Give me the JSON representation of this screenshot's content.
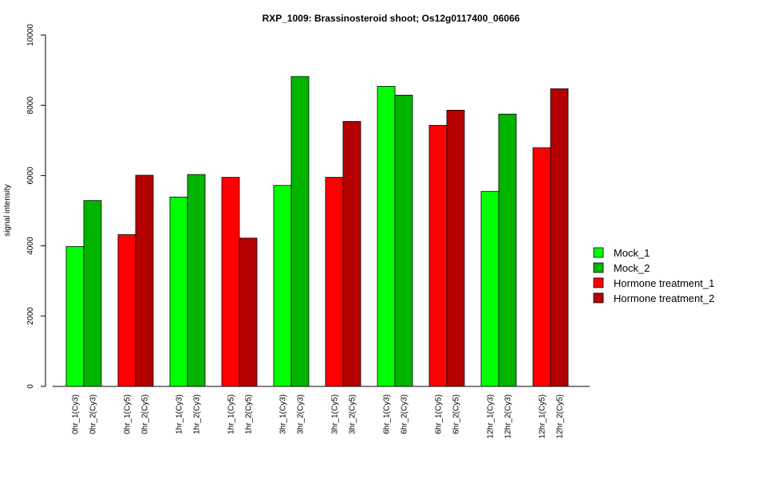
{
  "chart_data": {
    "type": "bar",
    "title": "RXP_1009: Brassinosteroid shoot; Os12g0117400_06066",
    "ylabel": "signal intensity",
    "xlabel": "",
    "ylim": [
      0,
      10000
    ],
    "yticks": [
      0,
      2000,
      4000,
      6000,
      8000,
      10000
    ],
    "grid": false,
    "legend_position": "right",
    "legend": [
      {
        "name": "Mock_1",
        "color": "#00FF00"
      },
      {
        "name": "Mock_2",
        "color": "#00B400"
      },
      {
        "name": "Hormone treatment_1",
        "color": "#FF0000"
      },
      {
        "name": "Hormone treatment_2",
        "color": "#B40000"
      }
    ],
    "groups": [
      {
        "bars": [
          {
            "label": "0hr_1(Cy3)",
            "value": 3980,
            "color": "#00FF00"
          },
          {
            "label": "0hr_2(Cy3)",
            "value": 5290,
            "color": "#00B400"
          }
        ]
      },
      {
        "bars": [
          {
            "label": "0hr_1(Cy5)",
            "value": 4320,
            "color": "#FF0000"
          },
          {
            "label": "0hr_2(Cy5)",
            "value": 6010,
            "color": "#B40000"
          }
        ]
      },
      {
        "bars": [
          {
            "label": "1hr_1(Cy3)",
            "value": 5390,
            "color": "#00FF00"
          },
          {
            "label": "1hr_2(Cy3)",
            "value": 6030,
            "color": "#00B400"
          }
        ]
      },
      {
        "bars": [
          {
            "label": "1hr_1(Cy5)",
            "value": 5950,
            "color": "#FF0000"
          },
          {
            "label": "1hr_2(Cy5)",
            "value": 4220,
            "color": "#B40000"
          }
        ]
      },
      {
        "bars": [
          {
            "label": "3hr_1(Cy3)",
            "value": 5720,
            "color": "#00FF00"
          },
          {
            "label": "3hr_2(Cy3)",
            "value": 8820,
            "color": "#00B400"
          }
        ]
      },
      {
        "bars": [
          {
            "label": "3hr_1(Cy5)",
            "value": 5950,
            "color": "#FF0000"
          },
          {
            "label": "3hr_2(Cy5)",
            "value": 7540,
            "color": "#B40000"
          }
        ]
      },
      {
        "bars": [
          {
            "label": "6hr_1(Cy3)",
            "value": 8540,
            "color": "#00FF00"
          },
          {
            "label": "6hr_2(Cy3)",
            "value": 8290,
            "color": "#00B400"
          }
        ]
      },
      {
        "bars": [
          {
            "label": "6hr_1(Cy5)",
            "value": 7430,
            "color": "#FF0000"
          },
          {
            "label": "6hr_2(Cy5)",
            "value": 7860,
            "color": "#B40000"
          }
        ]
      },
      {
        "bars": [
          {
            "label": "12hr_1(Cy3)",
            "value": 5550,
            "color": "#00FF00"
          },
          {
            "label": "12hr_2(Cy3)",
            "value": 7750,
            "color": "#00B400"
          }
        ]
      },
      {
        "bars": [
          {
            "label": "12hr_1(Cy5)",
            "value": 6790,
            "color": "#FF0000"
          },
          {
            "label": "12hr_2(Cy5)",
            "value": 8470,
            "color": "#B40000"
          }
        ]
      }
    ]
  }
}
